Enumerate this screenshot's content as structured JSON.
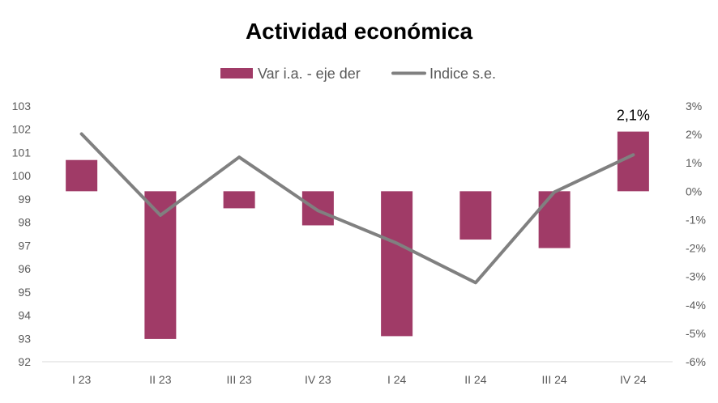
{
  "chart_data": {
    "type": "bar",
    "title": "Actividad económica",
    "categories": [
      "I 23",
      "II 23",
      "III 23",
      "IV 23",
      "I 24",
      "II 24",
      "III 24",
      "IV 24"
    ],
    "series": [
      {
        "name": "Var i.a. - eje der",
        "type": "bar",
        "axis": "right",
        "color": "#A03B67",
        "values": [
          1.1,
          -5.2,
          -0.6,
          -1.2,
          -5.1,
          -1.7,
          -2.0,
          2.1
        ]
      },
      {
        "name": "Indice s.e.",
        "type": "line",
        "axis": "left",
        "color": "#808080",
        "values": [
          101.8,
          98.3,
          100.8,
          98.5,
          97.1,
          95.4,
          99.3,
          100.9
        ]
      }
    ],
    "y_left": {
      "lim": [
        92,
        103
      ],
      "ticks": [
        "92",
        "93",
        "94",
        "95",
        "96",
        "97",
        "98",
        "99",
        "100",
        "101",
        "102",
        "103"
      ]
    },
    "y_right": {
      "lim": [
        -6,
        3
      ],
      "unit": "%",
      "ticks": [
        "-6%",
        "-5%",
        "-4%",
        "-3%",
        "-2%",
        "-1%",
        "0%",
        "1%",
        "2%",
        "3%"
      ]
    },
    "data_labels": [
      {
        "series": 0,
        "index": 7,
        "text": "2,1%"
      }
    ],
    "legend_position": "top",
    "grid": false
  }
}
